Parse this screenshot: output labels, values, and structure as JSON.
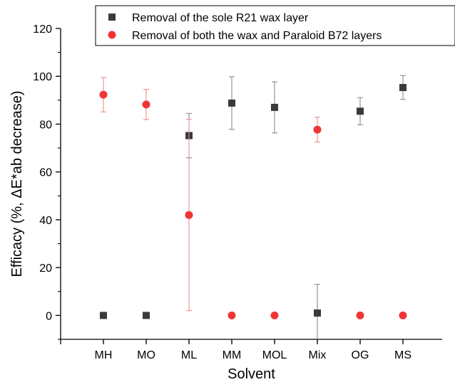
{
  "chart_data": {
    "type": "scatter",
    "title": "",
    "xlabel": "Solvent",
    "ylabel": "Efficacy (%, ΔE*ab decrease)",
    "categories": [
      "MH",
      "MO",
      "ML",
      "MM",
      "MOL",
      "Mix",
      "OG",
      "MS"
    ],
    "ylim": [
      -10,
      120
    ],
    "yticks": [
      0,
      20,
      40,
      60,
      80,
      100,
      120
    ],
    "grid": false,
    "legend_position": "top-right",
    "series": [
      {
        "name": "Removal of the sole R21 wax layer",
        "marker": "square",
        "color": "#3a3a3a",
        "error_color": "#808080",
        "values": [
          0,
          0,
          75.2,
          88.8,
          87.0,
          1.0,
          85.4,
          95.3
        ],
        "errors": [
          null,
          null,
          9.3,
          11.0,
          10.7,
          12.0,
          5.7,
          5.0
        ]
      },
      {
        "name": "Removal of both the wax and Paraloid B72 layers",
        "marker": "circle",
        "color": "#ef3535",
        "error_color": "#f08080",
        "values": [
          92.3,
          88.2,
          42.0,
          0,
          0,
          77.7,
          0,
          0
        ],
        "errors": [
          7.2,
          6.3,
          40.0,
          null,
          null,
          5.2,
          null,
          null
        ]
      }
    ]
  }
}
